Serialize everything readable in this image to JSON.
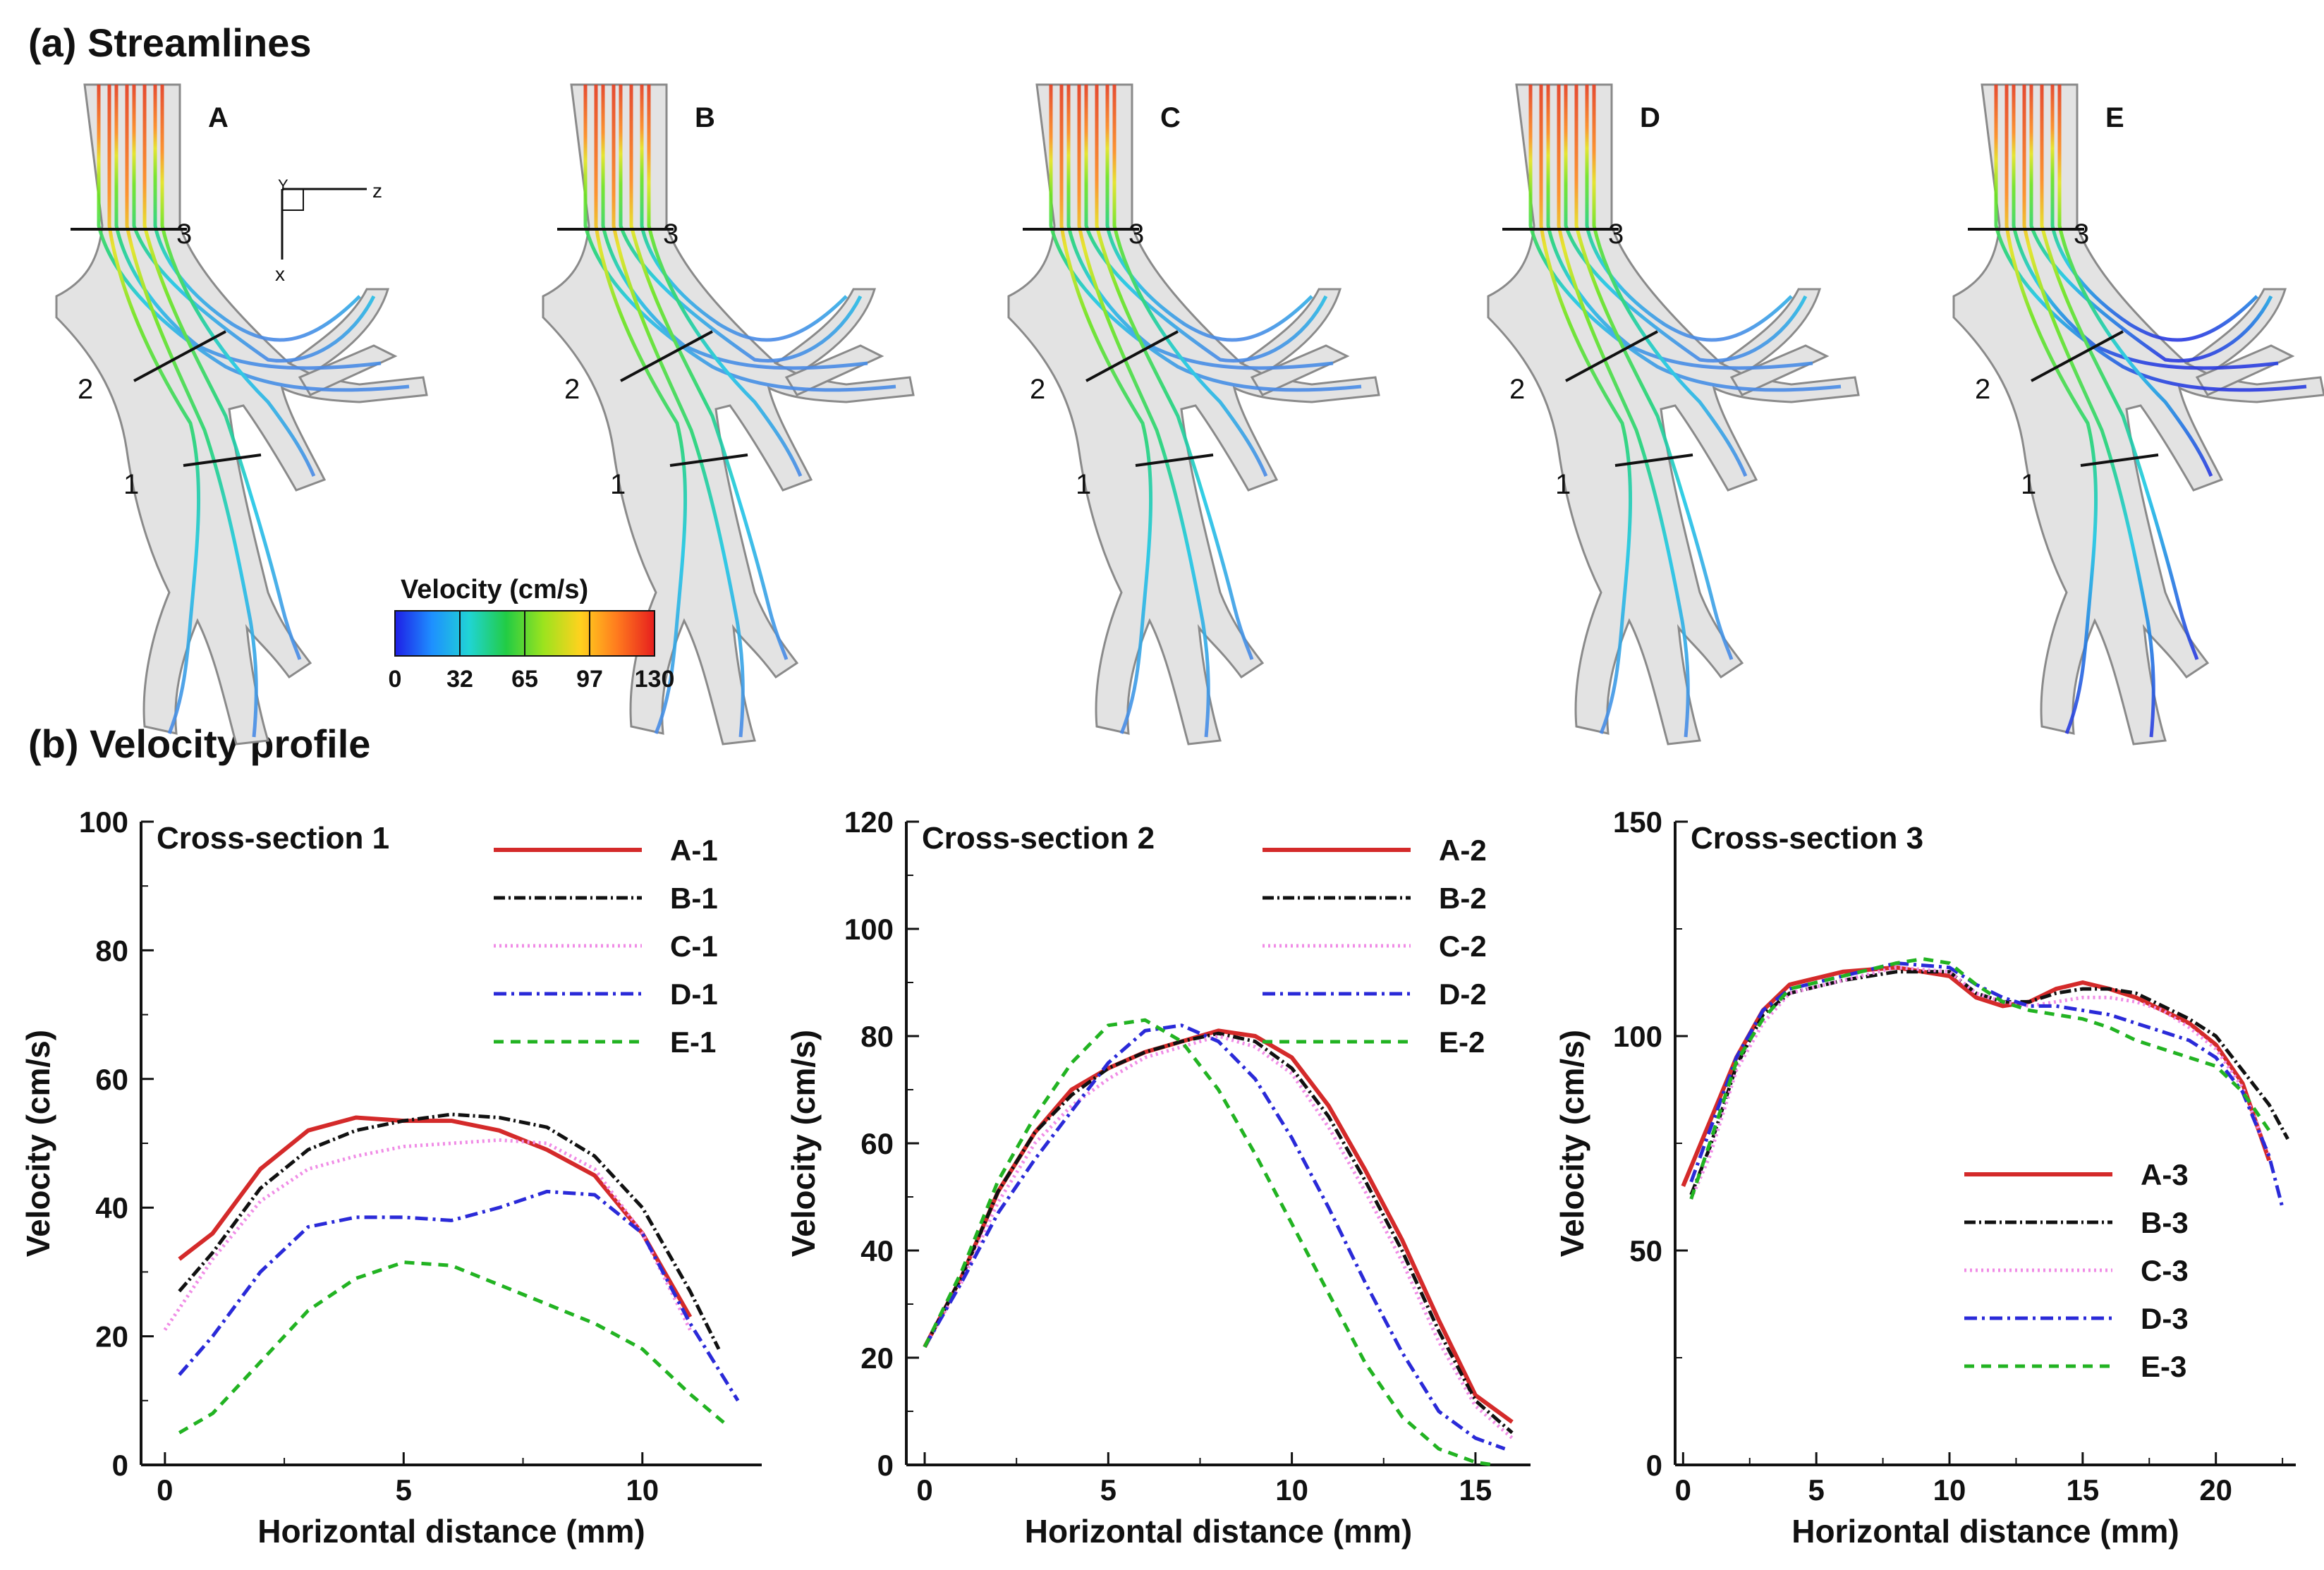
{
  "panel_a_title": "(a) Streamlines",
  "panel_b_title": "(b) Velocity profile",
  "streamlines": {
    "models": [
      "A",
      "B",
      "C",
      "D",
      "E"
    ],
    "section_labels": [
      "1",
      "2",
      "3"
    ],
    "axes_labels": {
      "y": "Y",
      "z": "z",
      "x": "x"
    },
    "colorbar": {
      "title": "Velocity (cm/s)",
      "ticks": [
        "0",
        "32",
        "65",
        "97",
        "130"
      ],
      "colors": [
        "#1e1ee6",
        "#1e90ff",
        "#20d4d4",
        "#22cc44",
        "#9be31e",
        "#ffd21e",
        "#ff7a1e",
        "#e61e1e"
      ]
    },
    "colors": {
      "vessel": "#e3e3e3",
      "vessel_edge": "#8a8a8a",
      "section_line": "#111111"
    }
  },
  "series_styles": {
    "A": {
      "color": "#d42a2a",
      "dash": ""
    },
    "B": {
      "color": "#111111",
      "dash": "16 5 3 5"
    },
    "C": {
      "color": "#f08ce6",
      "dash": "3 5"
    },
    "D": {
      "color": "#2a2ad8",
      "dash": "18 7 4 7"
    },
    "E": {
      "color": "#22b322",
      "dash": "14 10"
    }
  },
  "chart_data": [
    {
      "type": "line",
      "title": "Cross-section 1",
      "xlabel": "Horizontal distance (mm)",
      "ylabel": "Velocity (cm/s)",
      "xlim": [
        -0.5,
        12.5
      ],
      "ylim": [
        0,
        100
      ],
      "xticks": [
        0,
        5,
        10
      ],
      "yticks": [
        0,
        20,
        40,
        60,
        80,
        100
      ],
      "legend_position": "top-right",
      "series": [
        {
          "name": "A-1",
          "style": "A",
          "x": [
            0.3,
            1,
            2,
            3,
            4,
            5,
            6,
            7,
            8,
            9,
            10,
            11
          ],
          "y": [
            32,
            36,
            46,
            52,
            54,
            53.5,
            53.5,
            52,
            49,
            45,
            36,
            23
          ]
        },
        {
          "name": "B-1",
          "style": "B",
          "x": [
            0.3,
            1,
            2,
            3,
            4,
            5,
            6,
            7,
            8,
            9,
            10,
            11,
            11.6
          ],
          "y": [
            27,
            33,
            43,
            49,
            52,
            53.5,
            54.5,
            54,
            52.5,
            48,
            40,
            27,
            18
          ]
        },
        {
          "name": "C-1",
          "style": "C",
          "x": [
            0,
            1,
            2,
            3,
            4,
            5,
            6,
            7,
            8,
            9,
            10,
            11
          ],
          "y": [
            21,
            32,
            41,
            46,
            48,
            49.5,
            50,
            50.5,
            50,
            46,
            36,
            21
          ]
        },
        {
          "name": "D-1",
          "style": "D",
          "x": [
            0.3,
            1,
            2,
            3,
            4,
            5,
            6,
            7,
            8,
            9,
            10,
            11,
            12
          ],
          "y": [
            14,
            20,
            30,
            37,
            38.5,
            38.5,
            38,
            40,
            42.5,
            42,
            36,
            22,
            10
          ]
        },
        {
          "name": "E-1",
          "style": "E",
          "x": [
            0.3,
            1,
            2,
            3,
            4,
            5,
            6,
            7,
            8,
            9,
            10,
            11,
            11.8
          ],
          "y": [
            5,
            8,
            16,
            24,
            29,
            31.5,
            31,
            28,
            25,
            22,
            18,
            11,
            6
          ]
        }
      ]
    },
    {
      "type": "line",
      "title": "Cross-section 2",
      "xlabel": "Horizontal distance (mm)",
      "ylabel": "Velocity (cm/s)",
      "xlim": [
        -0.5,
        16.5
      ],
      "ylim": [
        0,
        120
      ],
      "xticks": [
        0,
        5,
        10,
        15
      ],
      "yticks": [
        0,
        20,
        40,
        60,
        80,
        100,
        120
      ],
      "legend_position": "top-right",
      "series": [
        {
          "name": "A-2",
          "style": "A",
          "x": [
            0,
            1,
            2,
            3,
            4,
            5,
            6,
            7,
            8,
            9,
            10,
            11,
            12,
            13,
            14,
            15,
            16
          ],
          "y": [
            22,
            35,
            51,
            62,
            70,
            74,
            77,
            79,
            81,
            80,
            76,
            67,
            55,
            42,
            27,
            13,
            8
          ]
        },
        {
          "name": "B-2",
          "style": "B",
          "x": [
            0,
            1,
            2,
            3,
            4,
            5,
            6,
            7,
            8,
            9,
            10,
            11,
            12,
            13,
            14,
            15,
            16
          ],
          "y": [
            22,
            35,
            51,
            62,
            69,
            74,
            77,
            79,
            80.5,
            79,
            74,
            65,
            53,
            40,
            25,
            12,
            6
          ]
        },
        {
          "name": "C-2",
          "style": "C",
          "x": [
            0,
            1,
            2,
            3,
            4,
            5,
            6,
            7,
            8,
            9,
            10,
            11,
            12,
            13,
            14,
            15,
            16
          ],
          "y": [
            22,
            34,
            49,
            60,
            67,
            72,
            76,
            78,
            80,
            78,
            73,
            63,
            51,
            38,
            23,
            11,
            5
          ]
        },
        {
          "name": "D-2",
          "style": "D",
          "x": [
            0,
            1,
            2,
            3,
            4,
            5,
            6,
            7,
            8,
            9,
            10,
            11,
            12,
            13,
            14,
            15,
            15.8
          ],
          "y": [
            22,
            34,
            47,
            57,
            66,
            75,
            81,
            82,
            79,
            72,
            61,
            48,
            34,
            21,
            10,
            5,
            3
          ]
        },
        {
          "name": "E-2",
          "style": "E",
          "x": [
            0,
            1,
            2,
            3,
            4,
            5,
            6,
            7,
            8,
            9,
            10,
            11,
            12,
            13,
            14,
            15,
            15.5
          ],
          "y": [
            22,
            36,
            53,
            65,
            75,
            82,
            83,
            79,
            70,
            58,
            45,
            32,
            19,
            9,
            3,
            0.5,
            0
          ]
        }
      ]
    },
    {
      "type": "line",
      "title": "Cross-section 3",
      "xlabel": "Horizontal distance (mm)",
      "ylabel": "Velocity (cm/s)",
      "xlim": [
        -0.3,
        23
      ],
      "ylim": [
        0,
        150
      ],
      "xticks": [
        0,
        5,
        10,
        15,
        20
      ],
      "yticks": [
        0,
        50,
        100,
        150
      ],
      "legend_position": "bottom-right",
      "series": [
        {
          "name": "A-3",
          "style": "A",
          "x": [
            0,
            1,
            2,
            3,
            4,
            6,
            8,
            10,
            11,
            12,
            13,
            14,
            15,
            16,
            17,
            18,
            19,
            20,
            21,
            22
          ],
          "y": [
            65,
            80,
            95,
            106,
            112,
            115,
            116,
            114,
            109,
            107,
            108,
            111,
            112.5,
            111,
            109,
            106,
            103,
            98,
            89,
            71
          ]
        },
        {
          "name": "B-3",
          "style": "B",
          "x": [
            0.3,
            1,
            2,
            3,
            4,
            6,
            8,
            10,
            11,
            12,
            13,
            14,
            15,
            16,
            17,
            18,
            19,
            20,
            21,
            22,
            22.7
          ],
          "y": [
            63,
            74,
            93,
            105,
            110,
            113,
            115,
            115,
            110,
            108,
            108,
            110,
            111,
            111,
            110,
            107,
            104,
            100,
            92,
            84,
            76
          ]
        },
        {
          "name": "C-3",
          "style": "C",
          "x": [
            0.3,
            1,
            2,
            3,
            4,
            6,
            8,
            10,
            11,
            12,
            13,
            14,
            15,
            16,
            17,
            18,
            19,
            20,
            21,
            22
          ],
          "y": [
            62,
            72,
            92,
            103,
            110,
            113,
            116,
            115,
            110,
            108,
            107,
            108,
            109,
            109,
            108,
            106,
            102,
            97,
            88,
            72
          ]
        },
        {
          "name": "D-3",
          "style": "D",
          "x": [
            0.3,
            1,
            2,
            3,
            4,
            6,
            8,
            10,
            11,
            12,
            13,
            14,
            15,
            16,
            17,
            18,
            19,
            20,
            21,
            22,
            22.5
          ],
          "y": [
            66,
            78,
            95,
            106,
            111,
            114,
            117,
            116,
            112,
            109,
            107,
            107,
            106,
            105,
            103,
            101,
            99,
            95,
            87,
            72,
            60
          ]
        },
        {
          "name": "E-3",
          "style": "E",
          "x": [
            0.3,
            1,
            2,
            3,
            4,
            6,
            8,
            9,
            10,
            11,
            12,
            13,
            14,
            15,
            16,
            17,
            18,
            19,
            20,
            21,
            22
          ],
          "y": [
            62,
            75,
            94,
            104,
            111,
            114,
            117,
            118,
            117,
            112,
            108,
            106,
            105,
            104,
            102,
            99,
            97,
            95,
            93,
            87,
            78
          ]
        }
      ]
    }
  ]
}
